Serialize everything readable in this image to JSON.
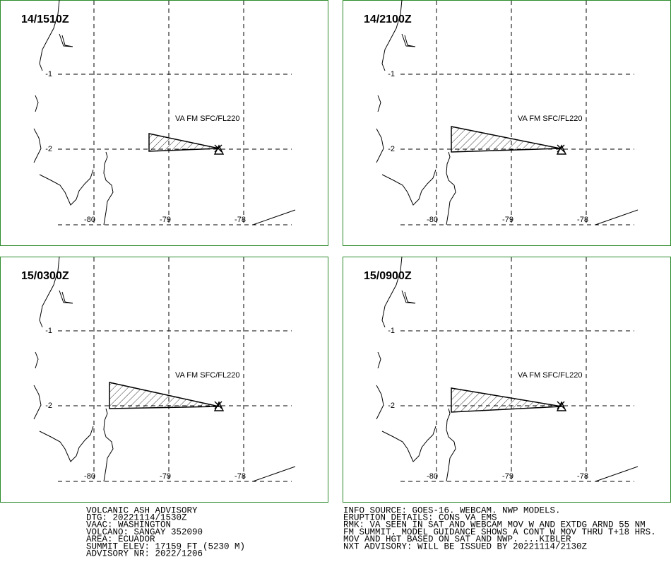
{
  "panels": [
    {
      "title": "14/1510Z",
      "lat_labels": [
        "-1",
        "-2"
      ],
      "lon_labels": [
        "-80",
        "-79",
        "-78"
      ],
      "ash_label": "VA FM SFC/FL220"
    },
    {
      "title": "14/2100Z",
      "lat_labels": [
        "-1",
        "-2"
      ],
      "lon_labels": [
        "-80",
        "-79",
        "-78"
      ],
      "ash_label": "VA FM SFC/FL220"
    },
    {
      "title": "15/0300Z",
      "lat_labels": [
        "-1",
        "-2"
      ],
      "lon_labels": [
        "-80",
        "-79",
        "-78"
      ],
      "ash_label": "VA FM SFC/FL220"
    },
    {
      "title": "15/0900Z",
      "lat_labels": [
        "-1",
        "-2"
      ],
      "lon_labels": [
        "-80",
        "-79",
        "-78"
      ],
      "ash_label": "VA FM SFC/FL220"
    }
  ],
  "advisory": {
    "left": [
      "VOLCANIC ASH ADVISORY",
      "DTG: 20221114/1530Z",
      "VAAC: WASHINGTON",
      "VOLCANO: SANGAY 352090",
      "AREA: ECUADOR",
      "SUMMIT ELEV: 17159 FT (5230 M)",
      "ADVISORY NR: 2022/1206"
    ],
    "right": [
      "INFO SOURCE: GOES-16. WEBCAM. NWP MODELS.",
      "ERUPTION DETAILS: CONS VA EMS",
      "RMK: VA SEEN IN SAT AND WEBCAM MOV W AND EXTDG ARND 55 NM",
      "FM SUMMIT. MODEL GUIDANCE SHOWS A CONT W MOV THRU T+18 HRS.",
      "MOV AND HGT BASED ON SAT AND NWP. ...KIBLER",
      "NXT ADVISORY: WILL BE ISSUED BY 20221114/2130Z"
    ]
  }
}
